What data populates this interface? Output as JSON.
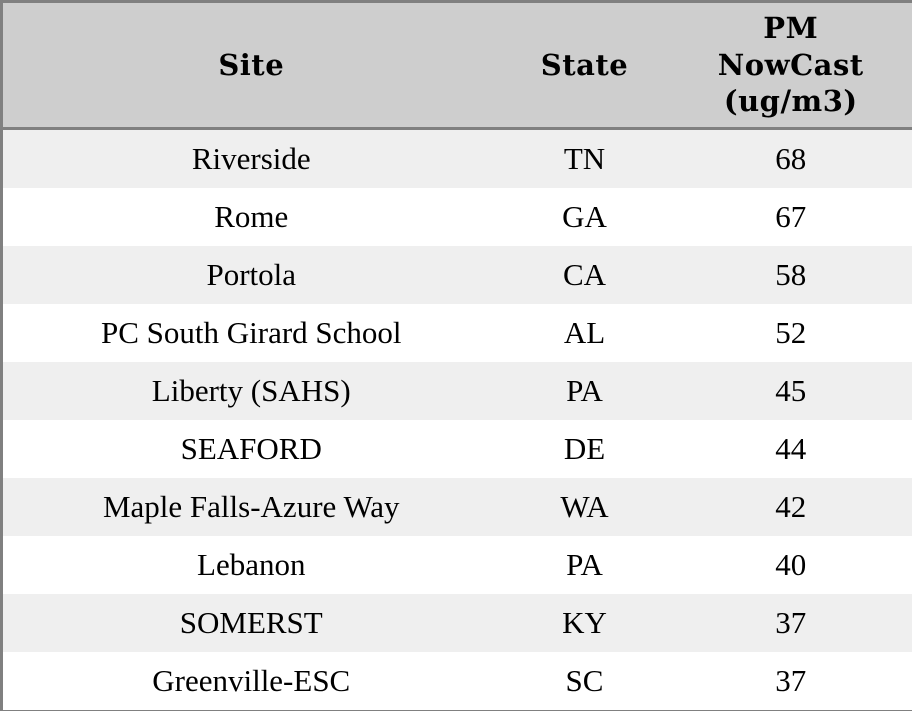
{
  "chart_data": {
    "type": "table",
    "title": "",
    "columns": [
      "Site",
      "State",
      "PM\nNowCast\n(ug/m3)"
    ],
    "columns_plain": [
      "Site",
      "State",
      "PM NowCast (ug/m3)"
    ],
    "rows": [
      [
        "Riverside",
        "TN",
        68
      ],
      [
        "Rome",
        "GA",
        67
      ],
      [
        "Portola",
        "CA",
        58
      ],
      [
        "PC South Girard School",
        "AL",
        52
      ],
      [
        "Liberty (SAHS)",
        "PA",
        45
      ],
      [
        "SEAFORD",
        "DE",
        44
      ],
      [
        "Maple Falls-Azure Way",
        "WA",
        42
      ],
      [
        "Lebanon",
        "PA",
        40
      ],
      [
        "SOMERST",
        "KY",
        37
      ],
      [
        "Greenville-ESC",
        "SC",
        37
      ]
    ],
    "layout": {
      "striped": true,
      "header_position": "top",
      "alignment": "center"
    }
  },
  "colors": {
    "header_bg": "#cecece",
    "border": "#808080",
    "row_alt_bg": "#efefef",
    "row_bg": "#ffffff",
    "text": "#000000"
  }
}
